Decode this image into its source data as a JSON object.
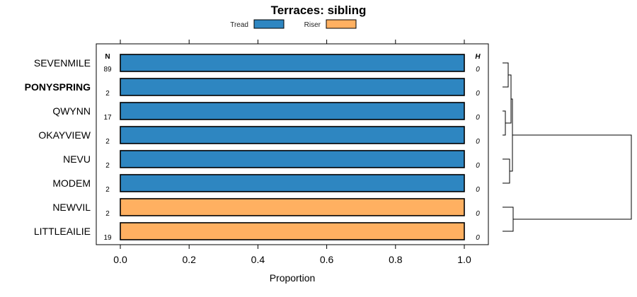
{
  "chart_data": {
    "type": "bar",
    "orientation": "horizontal",
    "stacked": true,
    "title": "Terraces: sibling",
    "xlabel": "Proportion",
    "ylabel": "",
    "xlim": [
      0,
      1
    ],
    "xticks": [
      "0.0",
      "0.2",
      "0.4",
      "0.6",
      "0.8",
      "1.0"
    ],
    "legend": {
      "placement": "top",
      "entries": [
        {
          "name": "Tread",
          "color": "#2e86c1"
        },
        {
          "name": "Riser",
          "color": "#ffb061"
        }
      ]
    },
    "n_header": "N",
    "h_header": "H",
    "categories": [
      "SEVENMILE",
      "PONYSPRING",
      "QWYNN",
      "OKAYVIEW",
      "NEVU",
      "MODEM",
      "NEWVIL",
      "LITTLEAILIE"
    ],
    "highlighted": "PONYSPRING",
    "n": [
      "89",
      "2",
      "17",
      "2",
      "2",
      "2",
      "2",
      "19"
    ],
    "h": [
      "0",
      "0",
      "0",
      "0",
      "0",
      "0",
      "0",
      "0"
    ],
    "series": [
      {
        "name": "Tread",
        "values": [
          1,
          1,
          1,
          1,
          1,
          1,
          0,
          0
        ]
      },
      {
        "name": "Riser",
        "values": [
          0,
          0,
          0,
          0,
          0,
          0,
          1,
          1
        ]
      }
    ],
    "dendrogram": "right side clustering tree grouping SEVENMILE/PONYSPRING, QWYNN/OKAYVIEW, NEVU/MODEM and NEWVIL/LITTLEAILIE"
  }
}
